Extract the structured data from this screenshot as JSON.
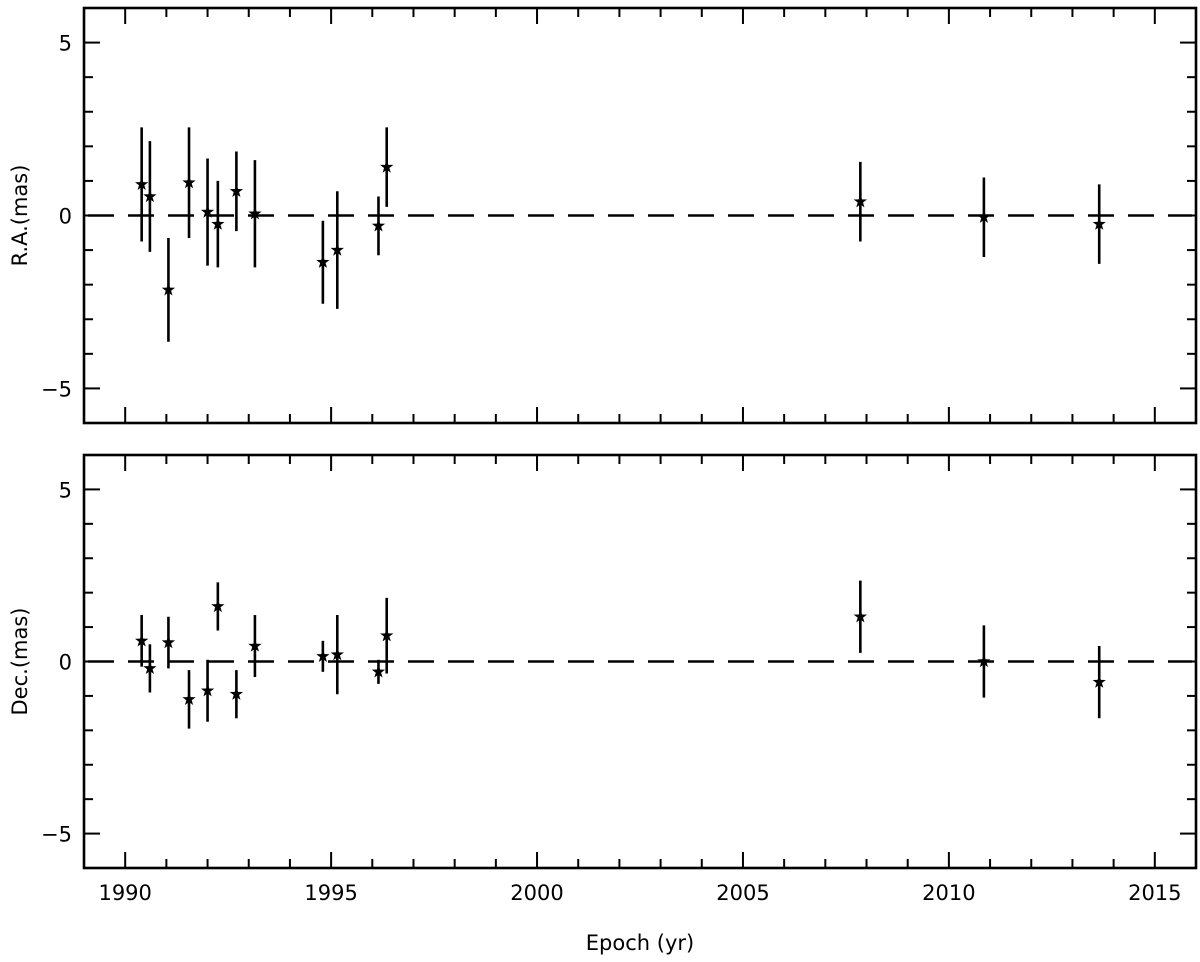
{
  "chart_data": [
    {
      "type": "scatter",
      "ylabel": "R.A.(mas)",
      "xlabel": "",
      "xlim": [
        1989,
        2016
      ],
      "ylim": [
        -6,
        6
      ],
      "yticks": [
        -5,
        0,
        5
      ],
      "reference_line": 0,
      "series": [
        {
          "x": [
            1990.4,
            1990.6,
            1991.05,
            1991.55,
            1992.0,
            1992.25,
            1992.7,
            1993.15,
            1994.8,
            1995.15,
            1996.15,
            1996.35,
            2007.85,
            2010.85,
            2013.65
          ],
          "y": [
            0.9,
            0.55,
            -2.15,
            0.95,
            0.1,
            -0.25,
            0.7,
            0.05,
            -1.35,
            -1.0,
            -0.3,
            1.4,
            0.4,
            -0.05,
            -0.25
          ],
          "err": [
            1.65,
            1.6,
            1.5,
            1.6,
            1.55,
            1.25,
            1.15,
            1.55,
            1.2,
            1.7,
            0.85,
            1.15,
            1.15,
            1.15,
            1.15
          ]
        }
      ]
    },
    {
      "type": "scatter",
      "ylabel": "Dec.(mas)",
      "xlabel": "Epoch (yr)",
      "xlim": [
        1989,
        2016
      ],
      "ylim": [
        -6,
        6
      ],
      "yticks": [
        -5,
        0,
        5
      ],
      "xticks": [
        1990,
        1995,
        2000,
        2005,
        2010,
        2015
      ],
      "reference_line": 0,
      "series": [
        {
          "x": [
            1990.4,
            1990.6,
            1991.05,
            1991.55,
            1992.0,
            1992.25,
            1992.7,
            1993.15,
            1994.8,
            1995.15,
            1996.15,
            1996.35,
            2007.85,
            2010.85,
            2013.65
          ],
          "y": [
            0.6,
            -0.2,
            0.55,
            -1.1,
            -0.85,
            1.6,
            -0.95,
            0.45,
            0.15,
            0.2,
            -0.3,
            0.75,
            1.3,
            0.0,
            -0.6
          ],
          "err": [
            0.75,
            0.7,
            0.75,
            0.85,
            0.9,
            0.7,
            0.7,
            0.9,
            0.45,
            1.15,
            0.35,
            1.1,
            1.05,
            1.05,
            1.05
          ]
        }
      ]
    }
  ]
}
